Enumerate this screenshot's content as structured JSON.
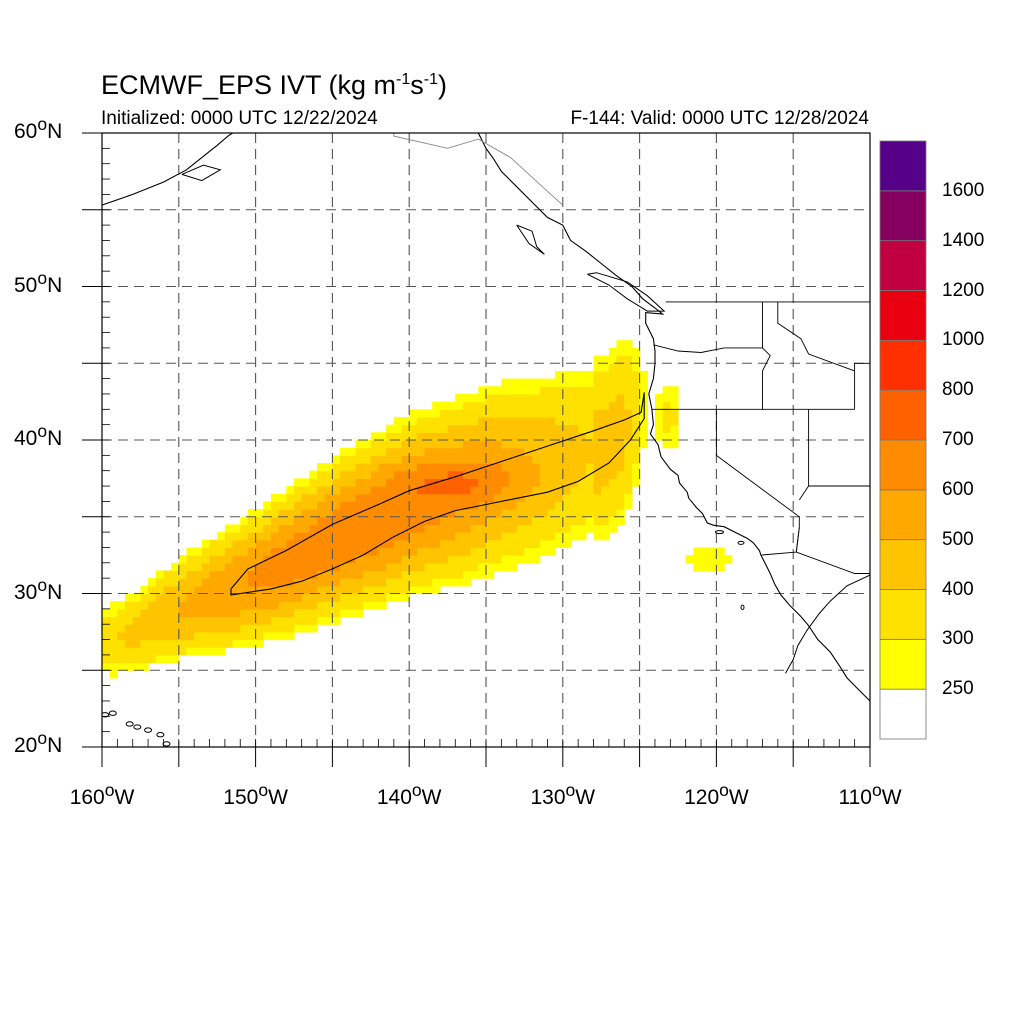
{
  "title": {
    "prefix": "ECMWF_EPS IVT (kg m",
    "exp1": "-1",
    "mid": "s",
    "exp2": "-1",
    "suffix": ")"
  },
  "subtitle_left": "Initialized: 0000 UTC 12/22/2024",
  "subtitle_right": "F-144: Valid: 0000 UTC 12/28/2024",
  "map": {
    "lon_range": [
      -160,
      -110
    ],
    "lat_range": [
      20,
      60
    ],
    "gridlines": "dashed",
    "lat_ticks": [
      {
        "value": 60,
        "num": "60",
        "hemi": "N"
      },
      {
        "value": 50,
        "num": "50",
        "hemi": "N"
      },
      {
        "value": 40,
        "num": "40",
        "hemi": "N"
      },
      {
        "value": 30,
        "num": "30",
        "hemi": "N"
      },
      {
        "value": 20,
        "num": "20",
        "hemi": "N"
      }
    ],
    "lon_ticks": [
      {
        "value": -160,
        "num": "160",
        "hemi": "W"
      },
      {
        "value": -150,
        "num": "150",
        "hemi": "W"
      },
      {
        "value": -140,
        "num": "140",
        "hemi": "W"
      },
      {
        "value": -130,
        "num": "130",
        "hemi": "W"
      },
      {
        "value": -120,
        "num": "120",
        "hemi": "W"
      },
      {
        "value": -110,
        "num": "110",
        "hemi": "W"
      }
    ]
  },
  "colorbar": {
    "levels": [
      250,
      300,
      400,
      500,
      600,
      700,
      800,
      1000,
      1200,
      1400,
      1600
    ],
    "labels": [
      "250",
      "300",
      "400",
      "500",
      "600",
      "700",
      "800",
      "1000",
      "1200",
      "1400",
      "1600"
    ],
    "colors": [
      "#ffffff",
      "#ffff00",
      "#ffe100",
      "#ffc400",
      "#ffa900",
      "#ff8c00",
      "#ff6000",
      "#ff3000",
      "#e80010",
      "#c00040",
      "#860060",
      "#56008a"
    ]
  },
  "ivt_field": {
    "main_band_centerline": [
      [
        -159,
        27
      ],
      [
        -155,
        29
      ],
      [
        -150,
        31
      ],
      [
        -145,
        33.5
      ],
      [
        -140,
        35.7
      ],
      [
        -135,
        37.3
      ],
      [
        -130,
        38.6
      ],
      [
        -127,
        39.6
      ],
      [
        -124.8,
        42
      ]
    ],
    "peak_value": 700,
    "peak_location": [
      -136.5,
      37.3
    ],
    "contour_line_value": 500
  },
  "colors": {
    "coast": "#000000",
    "grid": "#555555",
    "border": "#888888"
  }
}
